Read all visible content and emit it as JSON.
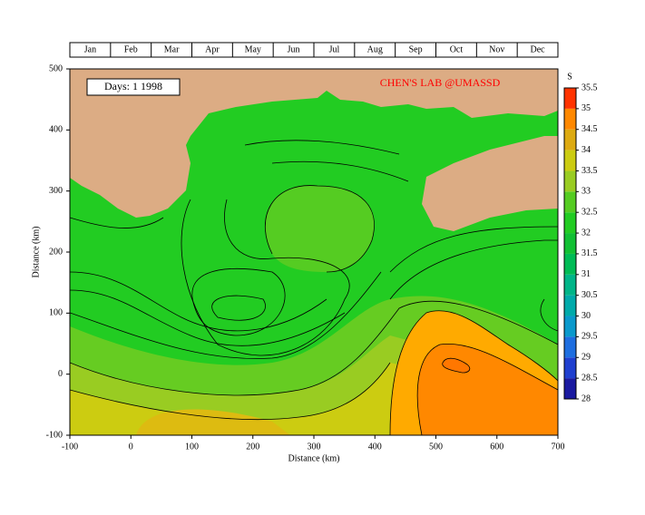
{
  "chart_data": {
    "type": "map",
    "months": [
      "Jan",
      "Feb",
      "Mar",
      "Apr",
      "May",
      "Jun",
      "Jul",
      "Aug",
      "Sep",
      "Oct",
      "Nov",
      "Dec"
    ],
    "date_label": "Days:  1  1998",
    "credit": "CHEN'S  LAB @UMASSD",
    "xlabel": "Distance (km)",
    "ylabel": "Distance (km)",
    "xlim": [
      -100,
      700
    ],
    "xticks": [
      -100,
      0,
      100,
      200,
      300,
      400,
      500,
      600,
      700
    ],
    "ylim": [
      -100,
      500
    ],
    "yticks": [
      -100,
      0,
      100,
      200,
      300,
      400,
      500
    ],
    "colorbar": {
      "label": "S",
      "lim": [
        28,
        35.5
      ],
      "ticks": [
        28,
        28.5,
        29,
        29.5,
        30,
        30.5,
        31,
        31.5,
        32,
        32.5,
        33,
        33.5,
        34,
        34.5,
        35,
        35.5
      ],
      "colors": [
        "#1a1aa0",
        "#1f3fcf",
        "#1e6ee0",
        "#0a99cc",
        "#00aaaa",
        "#00b588",
        "#00bb55",
        "#11c033",
        "#22cc22",
        "#55cc22",
        "#99cc22",
        "#cccc11",
        "#ddaa11",
        "#ff8800",
        "#ff3300"
      ]
    }
  }
}
